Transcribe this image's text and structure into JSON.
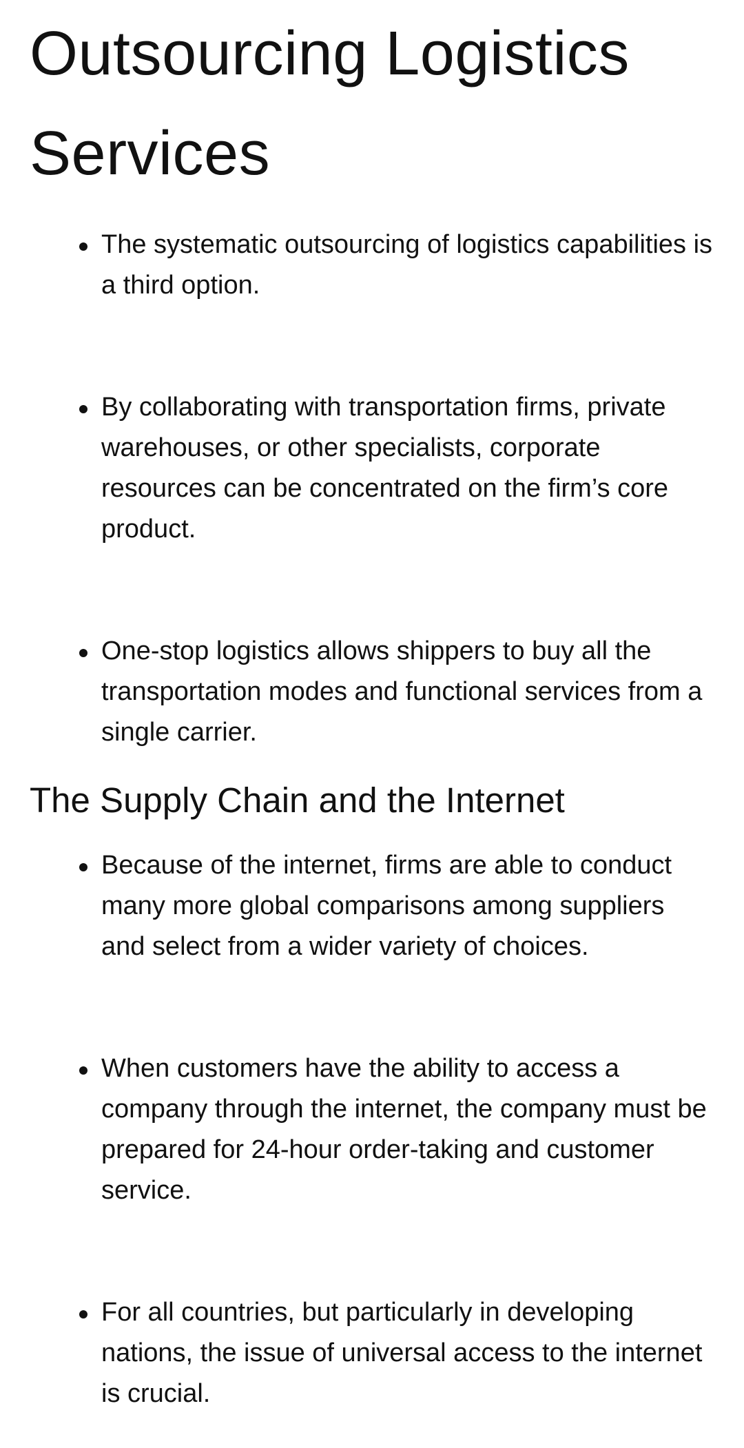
{
  "sections": [
    {
      "title": "Outsourcing Logistics Services",
      "bullets": [
        "The systematic outsourcing of logistics capabilities is a third option.",
        "By collaborating with transportation firms, private warehouses, or other specialists, corporate resources can be concentrated on the firm’s core product.",
        "One-stop logistics allows shippers to buy all the transportation modes and functional services from a single carrier."
      ]
    },
    {
      "title": "The Supply Chain and the Internet",
      "bullets": [
        "Because of the internet, firms are able to conduct many more global comparisons among suppliers and select from a wider variety of choices.",
        "When customers have the ability to access a company through the internet, the company must be prepared for 24-hour order-taking and customer service.",
        "For all countries, but particularly in developing nations, the issue of universal access to the internet is crucial."
      ]
    }
  ]
}
